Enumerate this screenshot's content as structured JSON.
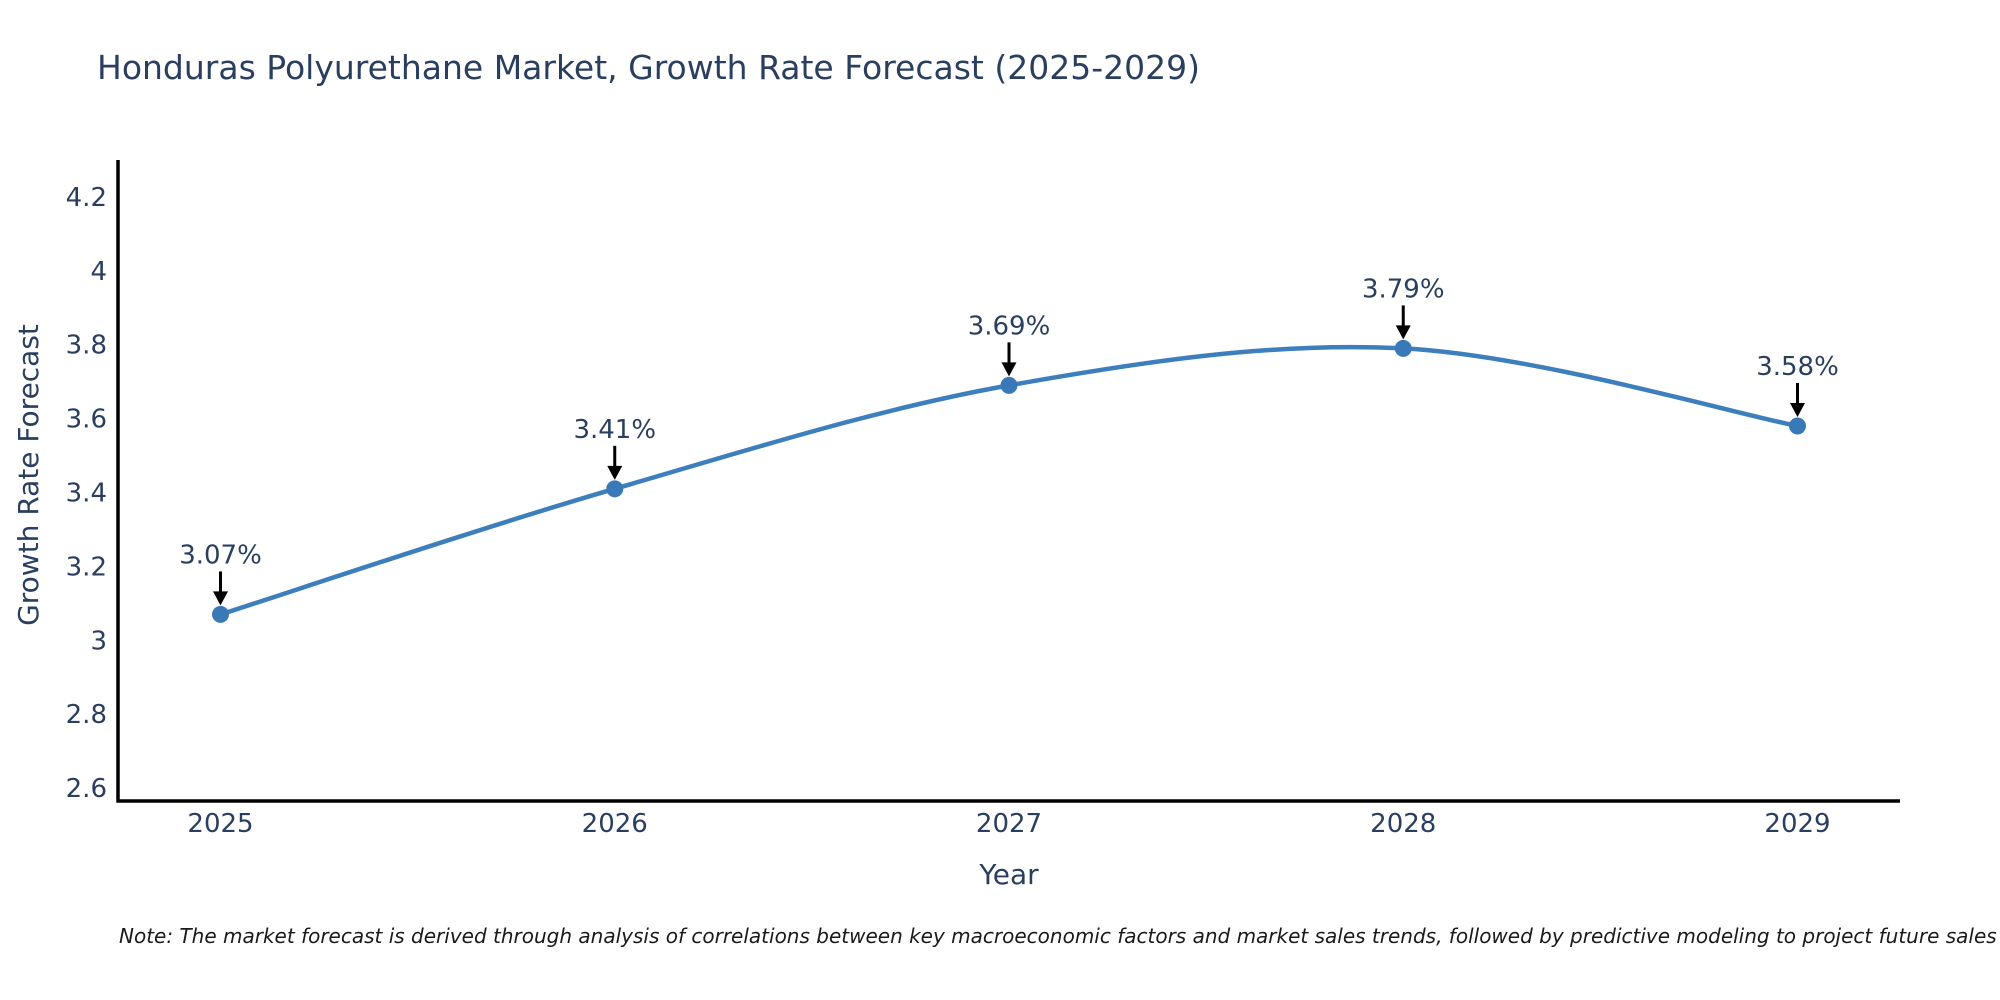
{
  "chart_data": {
    "type": "line",
    "title": "Honduras Polyurethane Market, Growth Rate Forecast (2025-2029)",
    "xlabel": "Year",
    "ylabel": "Growth Rate Forecast",
    "x": [
      2025,
      2026,
      2027,
      2028,
      2029
    ],
    "values": [
      3.07,
      3.41,
      3.69,
      3.79,
      3.58
    ],
    "point_labels": [
      "3.07%",
      "3.41%",
      "3.69%",
      "3.79%",
      "3.58%"
    ],
    "xtick_labels": [
      "2025",
      "2026",
      "2027",
      "2028",
      "2029"
    ],
    "yticks": [
      2.6,
      2.8,
      3.0,
      3.2,
      3.4,
      3.6,
      3.8,
      4.0,
      4.2
    ],
    "ytick_labels": [
      "2.6",
      "2.8",
      "3",
      "3.2",
      "3.4",
      "3.6",
      "3.8",
      "4",
      "4.2"
    ],
    "xlim": [
      2024.74,
      2029.26
    ],
    "ylim": [
      2.565,
      4.3
    ],
    "grid": false,
    "legend_position": "none",
    "line_shape": "spline",
    "annotation_style": "value-label-with-down-arrow",
    "colors": {
      "line": "#3d7ebd",
      "marker": "#3a79b8",
      "axis": "#000000",
      "text": "#2a3f5f",
      "arrow": "#000000"
    }
  },
  "note": "Note: The market forecast is derived through analysis of correlations between key macroeconomic factors and market sales trends, followed by predictive modeling to project future sales"
}
